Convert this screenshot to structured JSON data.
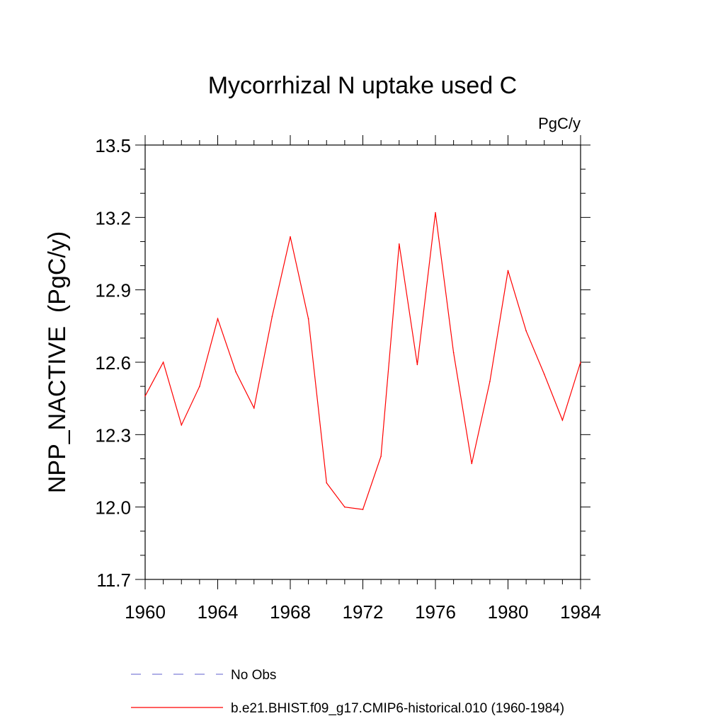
{
  "chart_data": {
    "type": "line",
    "title": "Mycorrhizal N uptake used C",
    "units_label": "PgC/y",
    "ylabel": "NPP_NACTIVE  (PgC/y)",
    "xlabel": "",
    "xlim": [
      1960,
      1984
    ],
    "ylim": [
      11.7,
      13.5
    ],
    "x_ticks": [
      1960,
      1964,
      1968,
      1972,
      1976,
      1980,
      1984
    ],
    "x_tick_labels": [
      "1960",
      "1964",
      "1968",
      "1972",
      "1976",
      "1980",
      "1984"
    ],
    "y_ticks": [
      11.7,
      12.0,
      12.3,
      12.6,
      12.9,
      13.2,
      13.5
    ],
    "y_tick_labels": [
      "11.7",
      "12.0",
      "12.3",
      "12.6",
      "12.9",
      "13.2",
      "13.5"
    ],
    "grid": false,
    "legend_placement": "bottom",
    "series": [
      {
        "name": "b.e21.BHIST.f09_g17.CMIP6-historical.010 (1960-1984)",
        "color": "#ff0000",
        "style": "solid",
        "x": [
          1960,
          1961,
          1962,
          1963,
          1964,
          1965,
          1966,
          1967,
          1968,
          1969,
          1970,
          1971,
          1972,
          1973,
          1974,
          1975,
          1976,
          1977,
          1978,
          1979,
          1980,
          1981,
          1982,
          1983,
          1984
        ],
        "values": [
          12.46,
          12.6,
          12.34,
          12.5,
          12.78,
          12.56,
          12.41,
          12.79,
          13.12,
          12.78,
          12.1,
          12.0,
          11.99,
          12.21,
          13.09,
          12.59,
          13.22,
          12.64,
          12.18,
          12.52,
          12.98,
          12.73,
          12.55,
          12.36,
          12.6
        ]
      },
      {
        "name": "No Obs",
        "color": "#7f7fd8",
        "style": "dashed",
        "x": [],
        "values": []
      }
    ]
  }
}
